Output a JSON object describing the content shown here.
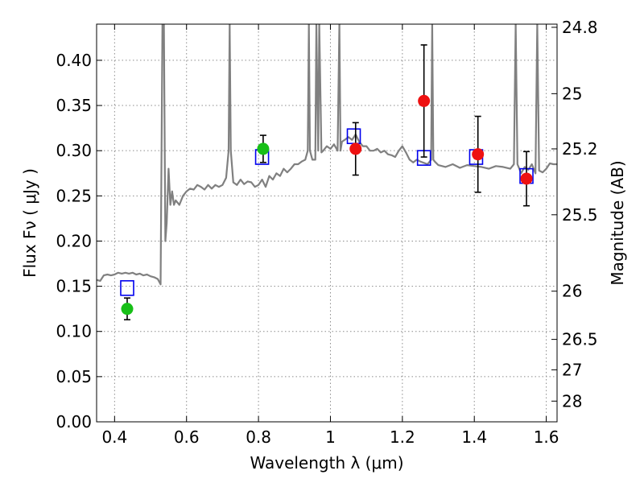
{
  "chart_data": {
    "type": "scatter",
    "title": "",
    "xlabel": "Wavelength  λ (μm)",
    "ylabel": "Flux  Fν  ( μJy )",
    "ylabel_right": "Magnitude (AB)",
    "xlim": [
      0.35,
      1.63
    ],
    "ylim": [
      0.0,
      0.44
    ],
    "grid": true,
    "legend": "none",
    "x_ticks": [
      {
        "value": 0.4,
        "label": "0.4"
      },
      {
        "value": 0.6,
        "label": "0.6"
      },
      {
        "value": 0.8,
        "label": "0.8"
      },
      {
        "value": 1.0,
        "label": "1"
      },
      {
        "value": 1.2,
        "label": "1.2"
      },
      {
        "value": 1.4,
        "label": "1.4"
      },
      {
        "value": 1.6,
        "label": "1.6"
      }
    ],
    "y_ticks": [
      {
        "value": 0.0,
        "label": "0.00"
      },
      {
        "value": 0.05,
        "label": "0.05"
      },
      {
        "value": 0.1,
        "label": "0.10"
      },
      {
        "value": 0.15,
        "label": "0.15"
      },
      {
        "value": 0.2,
        "label": "0.20"
      },
      {
        "value": 0.25,
        "label": "0.25"
      },
      {
        "value": 0.3,
        "label": "0.30"
      },
      {
        "value": 0.35,
        "label": "0.35"
      },
      {
        "value": 0.4,
        "label": "0.40"
      }
    ],
    "right_ticks": [
      {
        "mag": 24.8,
        "label": "24.8"
      },
      {
        "mag": 25.0,
        "label": "25"
      },
      {
        "mag": 25.2,
        "label": "25.2"
      },
      {
        "mag": 25.5,
        "label": "25.5"
      },
      {
        "mag": 26.0,
        "label": "26"
      },
      {
        "mag": 26.5,
        "label": "26.5"
      },
      {
        "mag": 27.0,
        "label": "27"
      },
      {
        "mag": 28.0,
        "label": "28"
      }
    ],
    "colors": {
      "model": "#808080",
      "green": "#17bf17",
      "red": "#ee1111",
      "square": "#0000ee",
      "errorbar": "#000000",
      "axes": "#000000"
    },
    "model_spectrum": {
      "x": [
        0.35,
        0.36,
        0.37,
        0.38,
        0.39,
        0.4,
        0.41,
        0.42,
        0.43,
        0.44,
        0.45,
        0.46,
        0.47,
        0.48,
        0.49,
        0.5,
        0.51,
        0.52,
        0.528,
        0.533,
        0.537,
        0.541,
        0.545,
        0.55,
        0.555,
        0.56,
        0.565,
        0.57,
        0.58,
        0.59,
        0.6,
        0.61,
        0.62,
        0.63,
        0.64,
        0.65,
        0.66,
        0.67,
        0.68,
        0.69,
        0.7,
        0.71,
        0.717,
        0.72,
        0.723,
        0.73,
        0.74,
        0.75,
        0.76,
        0.77,
        0.78,
        0.79,
        0.8,
        0.81,
        0.82,
        0.83,
        0.84,
        0.85,
        0.86,
        0.87,
        0.88,
        0.89,
        0.9,
        0.91,
        0.92,
        0.93,
        0.937,
        0.94,
        0.943,
        0.95,
        0.958,
        0.961,
        0.966,
        0.969,
        0.975,
        0.98,
        0.99,
        1.0,
        1.01,
        1.02,
        1.025,
        1.028,
        1.032,
        1.04,
        1.05,
        1.06,
        1.07,
        1.08,
        1.09,
        1.1,
        1.11,
        1.12,
        1.13,
        1.14,
        1.15,
        1.16,
        1.17,
        1.18,
        1.19,
        1.2,
        1.21,
        1.22,
        1.23,
        1.24,
        1.25,
        1.27,
        1.28,
        1.283,
        1.286,
        1.29,
        1.3,
        1.32,
        1.34,
        1.36,
        1.38,
        1.4,
        1.42,
        1.44,
        1.46,
        1.48,
        1.5,
        1.51,
        1.515,
        1.52,
        1.525,
        1.53,
        1.54,
        1.55,
        1.56,
        1.57,
        1.575,
        1.58,
        1.59,
        1.6,
        1.61,
        1.62,
        1.63
      ],
      "y": [
        0.157,
        0.156,
        0.162,
        0.163,
        0.162,
        0.163,
        0.165,
        0.164,
        0.165,
        0.164,
        0.165,
        0.163,
        0.164,
        0.162,
        0.163,
        0.161,
        0.16,
        0.158,
        0.152,
        0.44,
        0.44,
        0.2,
        0.22,
        0.28,
        0.24,
        0.255,
        0.24,
        0.245,
        0.24,
        0.25,
        0.255,
        0.258,
        0.257,
        0.262,
        0.26,
        0.257,
        0.262,
        0.258,
        0.262,
        0.26,
        0.262,
        0.27,
        0.3,
        0.44,
        0.3,
        0.265,
        0.262,
        0.268,
        0.263,
        0.266,
        0.265,
        0.26,
        0.262,
        0.268,
        0.26,
        0.272,
        0.268,
        0.275,
        0.272,
        0.28,
        0.276,
        0.28,
        0.285,
        0.285,
        0.288,
        0.29,
        0.3,
        0.44,
        0.3,
        0.29,
        0.29,
        0.44,
        0.3,
        0.44,
        0.298,
        0.3,
        0.305,
        0.302,
        0.307,
        0.3,
        0.44,
        0.3,
        0.31,
        0.312,
        0.315,
        0.312,
        0.318,
        0.31,
        0.305,
        0.305,
        0.3,
        0.3,
        0.302,
        0.298,
        0.3,
        0.296,
        0.295,
        0.293,
        0.3,
        0.305,
        0.298,
        0.29,
        0.287,
        0.29,
        0.288,
        0.285,
        0.29,
        0.44,
        0.29,
        0.288,
        0.284,
        0.282,
        0.285,
        0.281,
        0.284,
        0.283,
        0.282,
        0.28,
        0.283,
        0.282,
        0.28,
        0.285,
        0.44,
        0.285,
        0.28,
        0.275,
        0.282,
        0.279,
        0.285,
        0.275,
        0.44,
        0.278,
        0.276,
        0.28,
        0.286,
        0.285,
        0.285
      ]
    },
    "squares": {
      "x": [
        0.435,
        0.81,
        1.065,
        1.26,
        1.405,
        1.545
      ],
      "y": [
        0.148,
        0.293,
        0.316,
        0.292,
        0.293,
        0.272
      ]
    },
    "series": [
      {
        "color": "green",
        "points": [
          {
            "x": 0.435,
            "y": 0.125,
            "err_low": 0.012,
            "err_high": 0.012
          },
          {
            "x": 0.813,
            "y": 0.302,
            "err_low": 0.015,
            "err_high": 0.015
          }
        ]
      },
      {
        "color": "red",
        "points": [
          {
            "x": 1.07,
            "y": 0.302,
            "err_low": 0.029,
            "err_high": 0.029
          },
          {
            "x": 1.26,
            "y": 0.355,
            "err_low": 0.062,
            "err_high": 0.062
          },
          {
            "x": 1.41,
            "y": 0.296,
            "err_low": 0.042,
            "err_high": 0.042
          },
          {
            "x": 1.545,
            "y": 0.269,
            "err_low": 0.03,
            "err_high": 0.03
          }
        ]
      }
    ]
  }
}
